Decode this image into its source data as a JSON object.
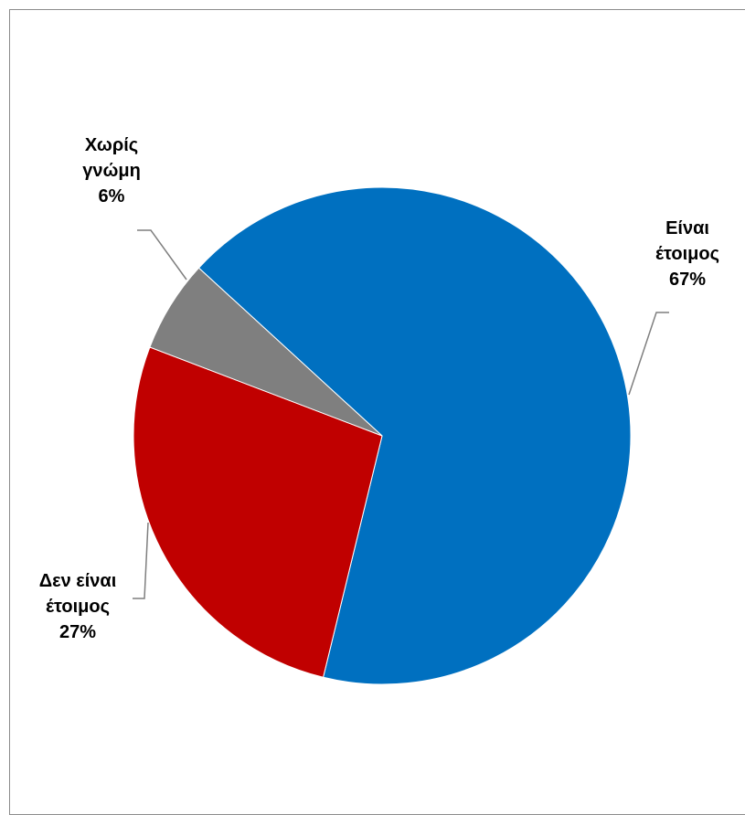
{
  "chart_data": {
    "type": "pie",
    "slices": [
      {
        "name_lines": [
          "Είναι",
          "έτοιμος"
        ],
        "value": 67,
        "value_label": "67%",
        "color": "#0070C0"
      },
      {
        "name_lines": [
          "Δεν είναι",
          "έτοιμος"
        ],
        "value": 27,
        "value_label": "27%",
        "color": "#C00000"
      },
      {
        "name_lines": [
          "Χωρίς",
          "γνώμη"
        ],
        "value": 6,
        "value_label": "6%",
        "color": "#7F7F7F"
      }
    ],
    "legend": "none",
    "data_labels": "outside with leader lines"
  }
}
